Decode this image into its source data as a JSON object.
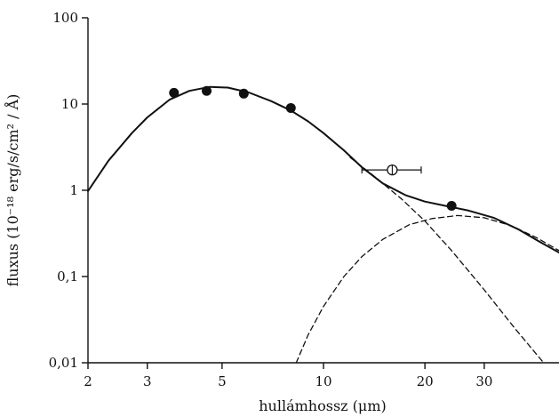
{
  "chart_data": {
    "type": "scatter",
    "title": "",
    "xlabel": "hullámhossz (μm)",
    "ylabel": "fluxus (10⁻¹⁸ erg/s/cm² / Å)",
    "x_scale": "log",
    "y_scale": "log",
    "xlim": [
      2,
      50
    ],
    "ylim": [
      0.01,
      100
    ],
    "x_ticks": [
      2,
      3,
      5,
      10,
      20,
      30
    ],
    "x_tick_labels": [
      "2",
      "3",
      "5",
      "10",
      "20",
      "30"
    ],
    "y_ticks": [
      0.01,
      0.1,
      1,
      10,
      100
    ],
    "y_tick_labels": [
      "0,01",
      "0,1",
      "1",
      "10",
      "100"
    ],
    "grid": false,
    "series": [
      {
        "kind": "measured points (filled)",
        "points": [
          {
            "x": 3.6,
            "y": 13.5
          },
          {
            "x": 4.5,
            "y": 14.2
          },
          {
            "x": 5.8,
            "y": 13.2
          },
          {
            "x": 8.0,
            "y": 9.0
          },
          {
            "x": 24.0,
            "y": 0.66
          }
        ]
      },
      {
        "kind": "measured point (open, with horizontal error bar)",
        "points": [
          {
            "x": 16.0,
            "y": 1.72,
            "x_err_low": 13.0,
            "x_err_high": 19.5
          }
        ]
      },
      {
        "kind": "model total (solid line)",
        "points": [
          {
            "x": 2.0,
            "y": 0.98
          },
          {
            "x": 2.3,
            "y": 2.2
          },
          {
            "x": 2.7,
            "y": 4.6
          },
          {
            "x": 3.0,
            "y": 7.0
          },
          {
            "x": 3.5,
            "y": 11.3
          },
          {
            "x": 4.0,
            "y": 14.2
          },
          {
            "x": 4.6,
            "y": 15.8
          },
          {
            "x": 5.2,
            "y": 15.5
          },
          {
            "x": 6.0,
            "y": 13.6
          },
          {
            "x": 7.0,
            "y": 10.8
          },
          {
            "x": 8.0,
            "y": 8.4
          },
          {
            "x": 9.0,
            "y": 6.3
          },
          {
            "x": 10.0,
            "y": 4.6
          },
          {
            "x": 11.5,
            "y": 2.9
          },
          {
            "x": 13.0,
            "y": 1.85
          },
          {
            "x": 15.0,
            "y": 1.2
          },
          {
            "x": 17.5,
            "y": 0.88
          },
          {
            "x": 20.0,
            "y": 0.74
          },
          {
            "x": 23.0,
            "y": 0.66
          },
          {
            "x": 27.0,
            "y": 0.58
          },
          {
            "x": 32.0,
            "y": 0.48
          },
          {
            "x": 38.0,
            "y": 0.35
          },
          {
            "x": 44.0,
            "y": 0.25
          },
          {
            "x": 50.0,
            "y": 0.19
          }
        ]
      },
      {
        "kind": "model component 1 (dashed)",
        "points": [
          {
            "x": 12.0,
            "y": 2.4
          },
          {
            "x": 14.0,
            "y": 1.5
          },
          {
            "x": 17.0,
            "y": 0.8
          },
          {
            "x": 20.0,
            "y": 0.44
          },
          {
            "x": 24.0,
            "y": 0.2
          },
          {
            "x": 30.0,
            "y": 0.07
          },
          {
            "x": 37.0,
            "y": 0.025
          },
          {
            "x": 45.0,
            "y": 0.01
          }
        ]
      },
      {
        "kind": "model component 2 (dashed)",
        "points": [
          {
            "x": 8.3,
            "y": 0.01
          },
          {
            "x": 9.0,
            "y": 0.021
          },
          {
            "x": 10.0,
            "y": 0.045
          },
          {
            "x": 11.5,
            "y": 0.1
          },
          {
            "x": 13.0,
            "y": 0.17
          },
          {
            "x": 15.0,
            "y": 0.27
          },
          {
            "x": 18.0,
            "y": 0.4
          },
          {
            "x": 21.0,
            "y": 0.47
          },
          {
            "x": 25.0,
            "y": 0.51
          },
          {
            "x": 30.0,
            "y": 0.48
          },
          {
            "x": 36.0,
            "y": 0.39
          },
          {
            "x": 43.0,
            "y": 0.28
          },
          {
            "x": 50.0,
            "y": 0.2
          }
        ]
      }
    ],
    "colors": {
      "line": "#111111",
      "axis": "#111111",
      "background": "#ffffff"
    }
  }
}
